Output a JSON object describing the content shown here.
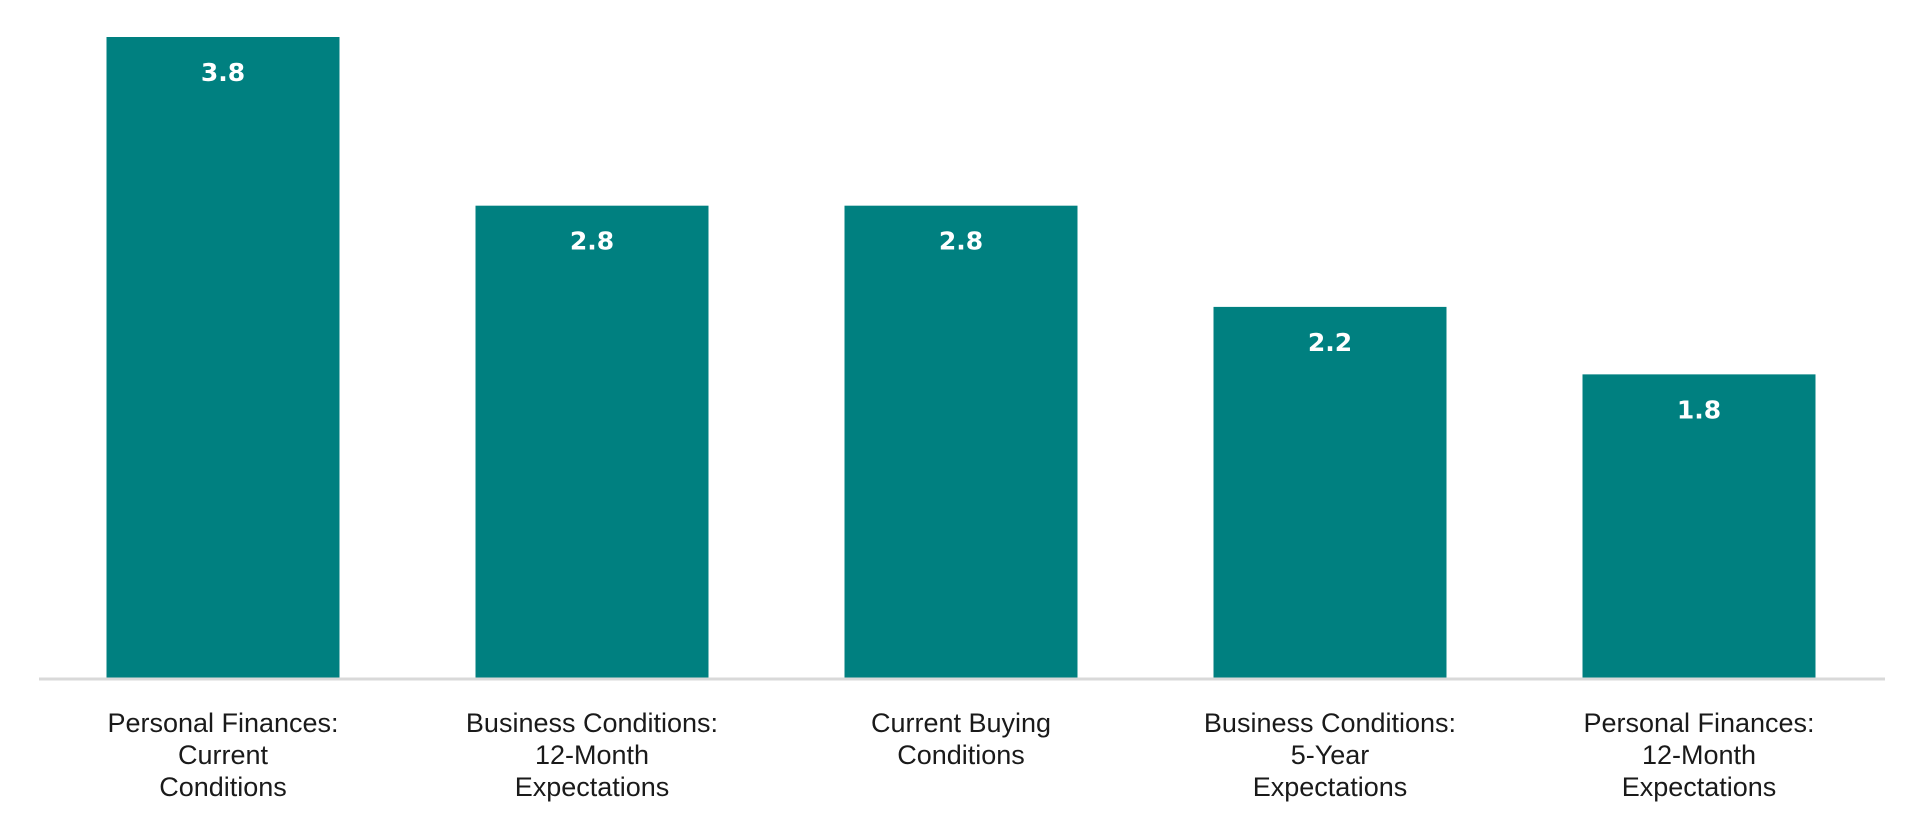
{
  "chart_data": {
    "type": "bar",
    "categories": [
      [
        "Personal Finances:",
        "Current",
        "Conditions"
      ],
      [
        "Business Conditions:",
        "12-Month",
        "Expectations"
      ],
      [
        "Current Buying",
        "Conditions"
      ],
      [
        "Business Conditions:",
        "5-Year",
        "Expectations"
      ],
      [
        "Personal Finances:",
        "12-Month",
        "Expectations"
      ]
    ],
    "values": [
      3.8,
      2.8,
      2.8,
      2.2,
      1.8
    ],
    "value_labels": [
      "3.8",
      "2.8",
      "2.8",
      "2.2",
      "1.8"
    ],
    "ylim": [
      0,
      3.8
    ],
    "grid": false,
    "legend": "none",
    "colors": {
      "bar": "#008080",
      "axis": "#d9d9d9",
      "value_text": "#ffffff",
      "category_text": "#1a1a1a"
    }
  }
}
